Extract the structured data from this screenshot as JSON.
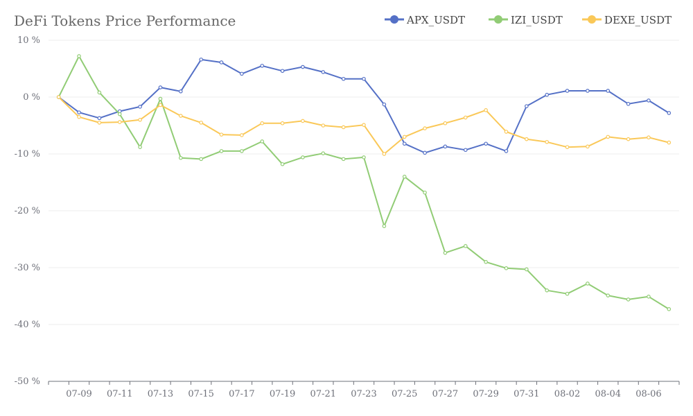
{
  "chart_data": {
    "type": "line",
    "title": "DeFi Tokens Price Performance",
    "xlabel": "",
    "ylabel": "",
    "ylim": [
      -50,
      10
    ],
    "y_ticks": [
      10,
      0,
      -10,
      -20,
      -30,
      -40,
      -50
    ],
    "y_tick_labels": [
      "10 %",
      "0 %",
      "-10 %",
      "-20 %",
      "-30 %",
      "-40 %",
      "-50 %"
    ],
    "grid": true,
    "legend_position": "top-right",
    "x": [
      "07-08",
      "07-09",
      "07-10",
      "07-11",
      "07-12",
      "07-13",
      "07-14",
      "07-15",
      "07-16",
      "07-17",
      "07-18",
      "07-19",
      "07-20",
      "07-21",
      "07-22",
      "07-23",
      "07-24",
      "07-25",
      "07-26",
      "07-27",
      "07-28",
      "07-29",
      "07-30",
      "07-31",
      "08-01",
      "08-02",
      "08-03",
      "08-04",
      "08-05",
      "08-06",
      "08-07"
    ],
    "x_tick_labels": [
      "07-09",
      "07-11",
      "07-13",
      "07-15",
      "07-17",
      "07-19",
      "07-21",
      "07-23",
      "07-25",
      "07-27",
      "07-29",
      "07-31",
      "08-02",
      "08-04",
      "08-06"
    ],
    "series": [
      {
        "name": "APX_USDT",
        "color": "#5470c6",
        "values": [
          0,
          -2.7,
          -3.7,
          -2.5,
          -1.7,
          1.7,
          1.0,
          6.6,
          6.1,
          4.1,
          5.5,
          4.6,
          5.3,
          4.4,
          3.2,
          3.2,
          -1.3,
          -8.2,
          -9.8,
          -8.7,
          -9.3,
          -8.2,
          -9.5,
          -1.6,
          0.4,
          1.1,
          1.1,
          1.1,
          -1.2,
          -0.6,
          -2.8
        ]
      },
      {
        "name": "IZI_USDT",
        "color": "#91cc75",
        "values": [
          0,
          7.2,
          0.8,
          -3.0,
          -8.8,
          -0.3,
          -10.7,
          -10.9,
          -9.5,
          -9.5,
          -7.8,
          -11.8,
          -10.6,
          -9.9,
          -10.9,
          -10.6,
          -22.7,
          -14.0,
          -16.8,
          -27.4,
          -26.2,
          -29.0,
          -30.1,
          -30.3,
          -34.0,
          -34.6,
          -32.8,
          -34.9,
          -35.6,
          -35.1,
          -37.3
        ]
      },
      {
        "name": "DEXE_USDT",
        "color": "#fac858",
        "values": [
          0,
          -3.5,
          -4.5,
          -4.4,
          -4.0,
          -1.4,
          -3.3,
          -4.5,
          -6.6,
          -6.7,
          -4.6,
          -4.6,
          -4.2,
          -5.0,
          -5.3,
          -4.9,
          -10.0,
          -7.0,
          -5.5,
          -4.6,
          -3.6,
          -2.3,
          -6.1,
          -7.4,
          -7.9,
          -8.8,
          -8.7,
          -7.0,
          -7.4,
          -7.1,
          -8.0
        ]
      }
    ]
  }
}
